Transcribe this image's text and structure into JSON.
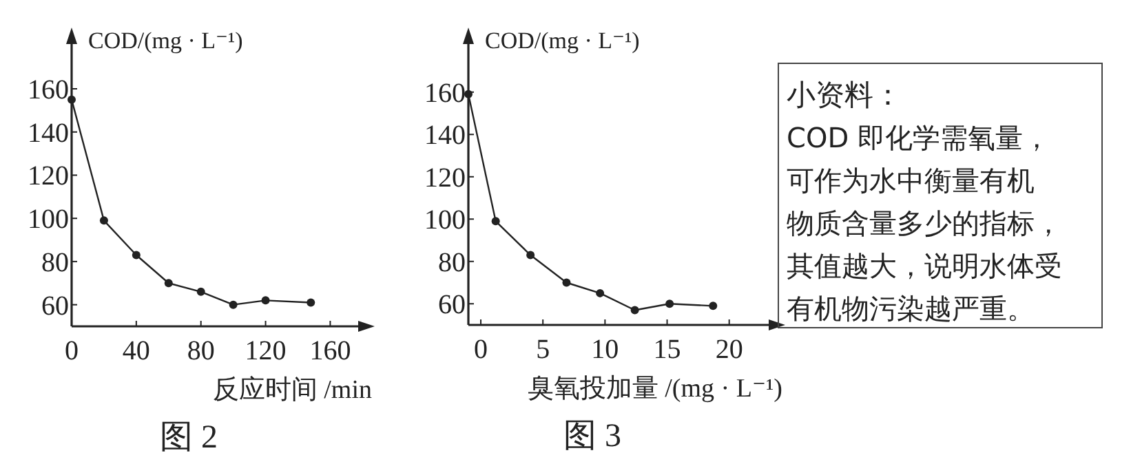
{
  "chart_data": [
    {
      "type": "line",
      "ylabel": "COD/(mg · L⁻¹)",
      "xlabel": "反应时间 /min",
      "annotations": [
        "图 2"
      ],
      "x": [
        0,
        20,
        40,
        60,
        80,
        100,
        120,
        148
      ],
      "xlim": [
        0,
        179
      ],
      "xticks": [
        0,
        40,
        80,
        120,
        160
      ],
      "ylim": [
        50,
        182
      ],
      "yticks": [
        60,
        80,
        100,
        120,
        140,
        160
      ],
      "series": [
        {
          "color": "#222222",
          "values": [
            155,
            99,
            83,
            70,
            66,
            60,
            62,
            61
          ]
        }
      ],
      "marker": "circle",
      "line_style": "solid",
      "grid": false
    },
    {
      "type": "line",
      "ylabel": "COD/(mg · L⁻¹)",
      "xlabel": "臭氧投加量 /(mg · L⁻¹)",
      "annotations": [
        "图 3"
      ],
      "x": [
        -1,
        1.2,
        4,
        6.9,
        9.6,
        12.4,
        15.2,
        18.7
      ],
      "xlim": [
        -1,
        23.4
      ],
      "xticks": [
        0,
        5,
        10,
        15,
        20
      ],
      "ylim": [
        50,
        184
      ],
      "yticks": [
        60,
        80,
        100,
        120,
        140,
        160
      ],
      "series": [
        {
          "color": "#222222",
          "values": [
            159,
            99,
            83,
            70,
            65,
            57,
            60,
            59
          ]
        }
      ],
      "marker": "circle",
      "line_style": "solid",
      "grid": false
    },
    {
      "type": "other",
      "title": "小资料：",
      "annotations": [
        "COD 即化学需氧量，",
        "可作为水中衡量有机",
        "物质含量多少的指标，",
        "其值越大，说明水体受",
        "有机物污染越严重。"
      ]
    }
  ]
}
